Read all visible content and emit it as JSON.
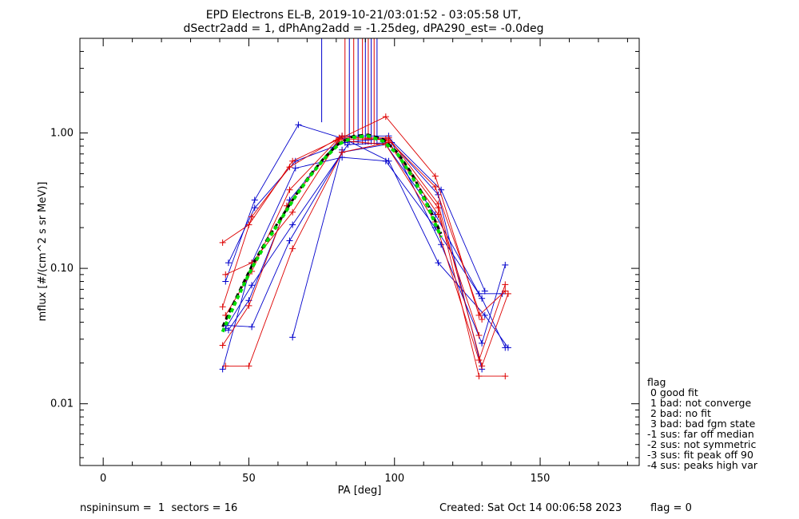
{
  "chart_data": {
    "type": "line",
    "title_line1": "EPD Electrons EL-B, 2019-10-21/03:01:52 - 03:05:58 UT,",
    "title_line2": "dSectr2add = 1, dPhAng2add = -1.25deg, dPA290_est=  -0.0deg",
    "xlabel": "PA [deg]",
    "ylabel": "mflux [#/(cm^2 s sr MeV)]",
    "xlim": [
      -8,
      184
    ],
    "ylim": [
      0.0035,
      5.0
    ],
    "yscale": "log",
    "x_ticks": [
      0,
      50,
      100,
      150
    ],
    "x_tick_labels": [
      "0",
      "50",
      "100",
      "150"
    ],
    "y_ticks": [
      0.01,
      0.1,
      1.0
    ],
    "y_tick_labels": [
      "0.01",
      "0.10",
      "1.00"
    ],
    "grid": false,
    "legend": {
      "position": "right-bottom",
      "title": "flag",
      "entries": [
        " 0 good fit",
        " 1 bad: not converge",
        " 2 bad: no fit",
        " 3 bad: bad fgm state",
        "-1 sus: far off median",
        "-2 sus: not symmetric",
        "-3 sus: fit peak off 90",
        "-4 sus: peaks high var"
      ]
    },
    "colors": {
      "blue": "#0000cc",
      "red": "#dd0000",
      "fit": "#00dd00",
      "median": "#000000"
    },
    "series": [
      {
        "color": "blue",
        "x": [
          41,
          51,
          66,
          82,
          97,
          114,
          130,
          138
        ],
        "y": [
          0.018,
          0.11,
          0.55,
          0.66,
          0.62,
          0.2,
          0.06,
          0.026
        ]
      },
      {
        "color": "blue",
        "x": [
          42,
          52,
          67,
          83,
          98,
          115,
          131,
          139
        ],
        "y": [
          0.08,
          0.32,
          1.15,
          0.9,
          0.62,
          0.11,
          0.045,
          0.026
        ]
      },
      {
        "color": "blue",
        "x": [
          43,
          50,
          64,
          82,
          98,
          116,
          130,
          138
        ],
        "y": [
          0.035,
          0.058,
          0.32,
          0.95,
          0.95,
          0.15,
          0.028,
          0.106
        ]
      },
      {
        "color": "blue",
        "x": [
          42,
          51,
          65,
          84,
          99,
          115,
          130
        ],
        "y": [
          0.036,
          0.075,
          0.21,
          0.82,
          0.85,
          0.35,
          0.018
        ]
      },
      {
        "color": "blue",
        "x": [
          43,
          52,
          66,
          83,
          98,
          116,
          131
        ],
        "y": [
          0.11,
          0.28,
          0.62,
          0.85,
          0.92,
          0.38,
          0.068
        ]
      },
      {
        "color": "blue",
        "x": [
          65,
          82
        ],
        "y": [
          0.031,
          0.75
        ]
      },
      {
        "color": "blue",
        "x": [
          42,
          51,
          64,
          82,
          97,
          114,
          129,
          137
        ],
        "y": [
          0.038,
          0.037,
          0.16,
          0.72,
          0.82,
          0.25,
          0.065,
          0.065
        ]
      },
      {
        "color": "red",
        "x": [
          41,
          50,
          65,
          80,
          97,
          114,
          129,
          138
        ],
        "y": [
          0.155,
          0.21,
          0.62,
          0.88,
          1.32,
          0.48,
          0.045,
          0.068
        ]
      },
      {
        "color": "red",
        "x": [
          42,
          51,
          64,
          81,
          98,
          115,
          130,
          139
        ],
        "y": [
          0.045,
          0.095,
          0.38,
          0.92,
          0.92,
          0.3,
          0.019,
          0.065
        ]
      },
      {
        "color": "red",
        "x": [
          41,
          50,
          63,
          81,
          97,
          114,
          129,
          138
        ],
        "y": [
          0.027,
          0.053,
          0.29,
          0.88,
          0.82,
          0.22,
          0.021,
          0.076
        ]
      },
      {
        "color": "red",
        "x": [
          42,
          50,
          65,
          82,
          98,
          115,
          129,
          138
        ],
        "y": [
          0.019,
          0.019,
          0.14,
          0.72,
          0.85,
          0.28,
          0.016,
          0.016
        ]
      },
      {
        "color": "red",
        "x": [
          41,
          51,
          64,
          82,
          98,
          114,
          130
        ],
        "y": [
          0.052,
          0.24,
          0.56,
          0.95,
          0.88,
          0.4,
          0.042
        ]
      },
      {
        "color": "red",
        "x": [
          42,
          51,
          65,
          81,
          97,
          115,
          129
        ],
        "y": [
          0.09,
          0.11,
          0.26,
          0.9,
          0.9,
          0.25,
          0.032
        ]
      }
    ],
    "fit_curve": {
      "x": [
        41,
        46,
        51,
        56,
        61,
        66,
        71,
        76,
        81,
        86,
        91,
        96,
        101,
        106,
        111,
        116
      ],
      "y": [
        0.034,
        0.06,
        0.1,
        0.155,
        0.23,
        0.34,
        0.48,
        0.65,
        0.83,
        0.93,
        0.95,
        0.87,
        0.7,
        0.48,
        0.3,
        0.17
      ]
    },
    "median_curve": {
      "x": [
        41,
        46,
        51,
        56,
        61,
        66,
        71,
        76,
        81,
        86,
        91,
        96,
        101,
        106,
        111,
        116
      ],
      "y": [
        0.037,
        0.063,
        0.104,
        0.16,
        0.235,
        0.345,
        0.49,
        0.66,
        0.84,
        0.95,
        0.97,
        0.9,
        0.72,
        0.5,
        0.31,
        0.18
      ]
    },
    "peak_markers": [
      {
        "x": 75,
        "color": "blue",
        "bottom": 1.2
      },
      {
        "x": 83,
        "color": "red",
        "bottom": 0.82
      },
      {
        "x": 84.5,
        "color": "blue",
        "bottom": 0.82
      },
      {
        "x": 86,
        "color": "red",
        "bottom": 0.82
      },
      {
        "x": 87.5,
        "color": "blue",
        "bottom": 0.82
      },
      {
        "x": 89,
        "color": "red",
        "bottom": 0.82
      },
      {
        "x": 90,
        "color": "blue",
        "bottom": 0.82
      },
      {
        "x": 91,
        "color": "red",
        "bottom": 0.82
      },
      {
        "x": 92,
        "color": "blue",
        "bottom": 0.82
      },
      {
        "x": 93,
        "color": "red",
        "bottom": 0.82
      },
      {
        "x": 94,
        "color": "blue",
        "bottom": 0.82
      }
    ]
  },
  "footer": {
    "left": "nspininsum =  1  sectors = 16",
    "created": "Created: Sat Oct 14 00:06:58 2023",
    "flag": "flag = 0"
  }
}
